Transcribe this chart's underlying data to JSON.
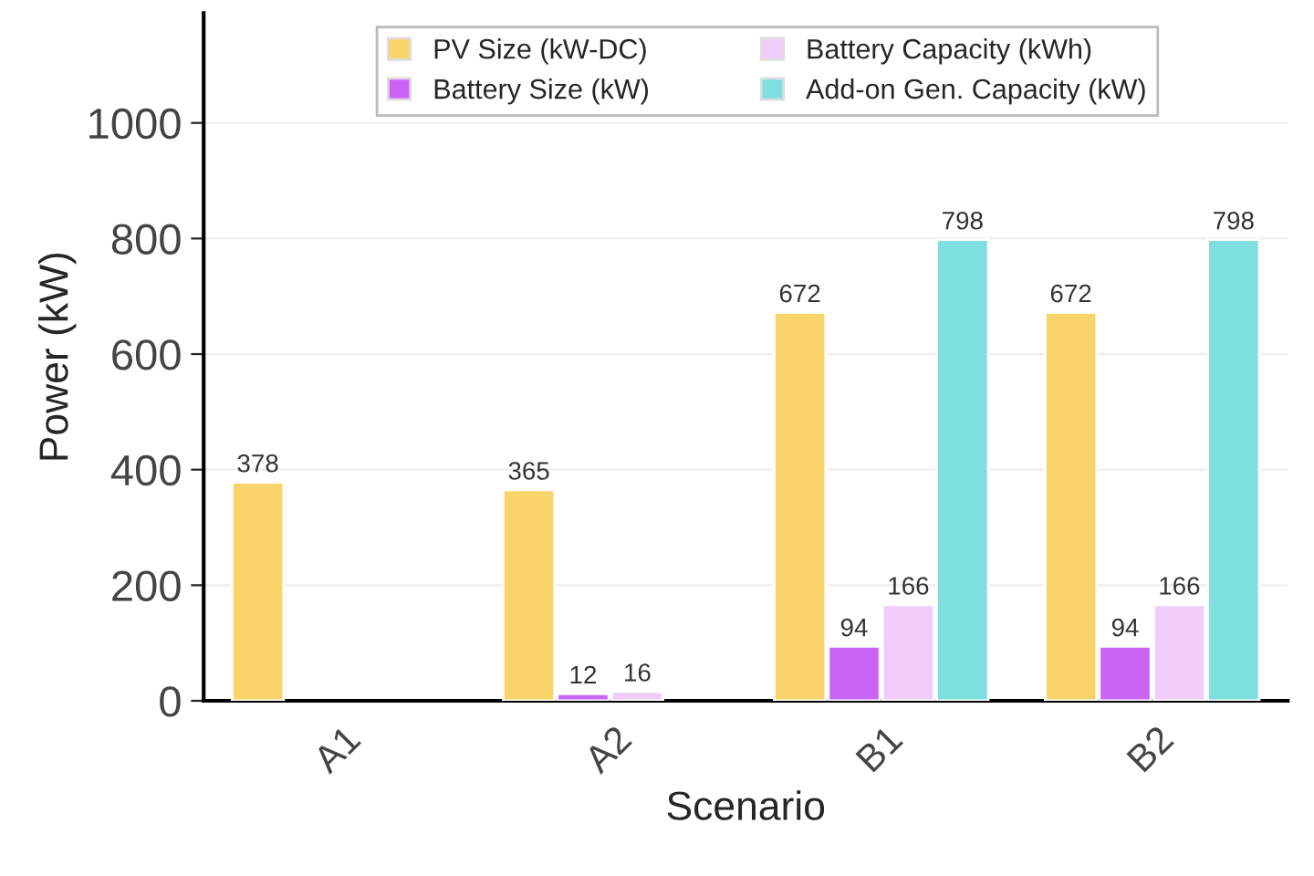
{
  "chart_data": {
    "type": "bar",
    "xlabel": "Scenario",
    "ylabel": "Power (kW)",
    "categories": [
      "A1",
      "A2",
      "B1",
      "B2"
    ],
    "series": [
      {
        "name": "PV Size (kW-DC)",
        "color": "#f8d46a",
        "values": [
          378,
          365,
          672,
          672
        ]
      },
      {
        "name": "Battery Size (kW)",
        "color": "#c964f5",
        "values": [
          null,
          12,
          94,
          94
        ]
      },
      {
        "name": "Battery Capacity (kWh)",
        "color": "#f0cdf8",
        "values": [
          null,
          16,
          166,
          166
        ]
      },
      {
        "name": "Add-on Gen. Capacity (kW)",
        "color": "#7fdede",
        "values": [
          null,
          null,
          798,
          798
        ]
      }
    ],
    "ylim": [
      0,
      1190
    ],
    "yticks": [
      0,
      200,
      400,
      600,
      800,
      1000
    ],
    "grid": "y",
    "legend": "top",
    "data_labels": true
  }
}
